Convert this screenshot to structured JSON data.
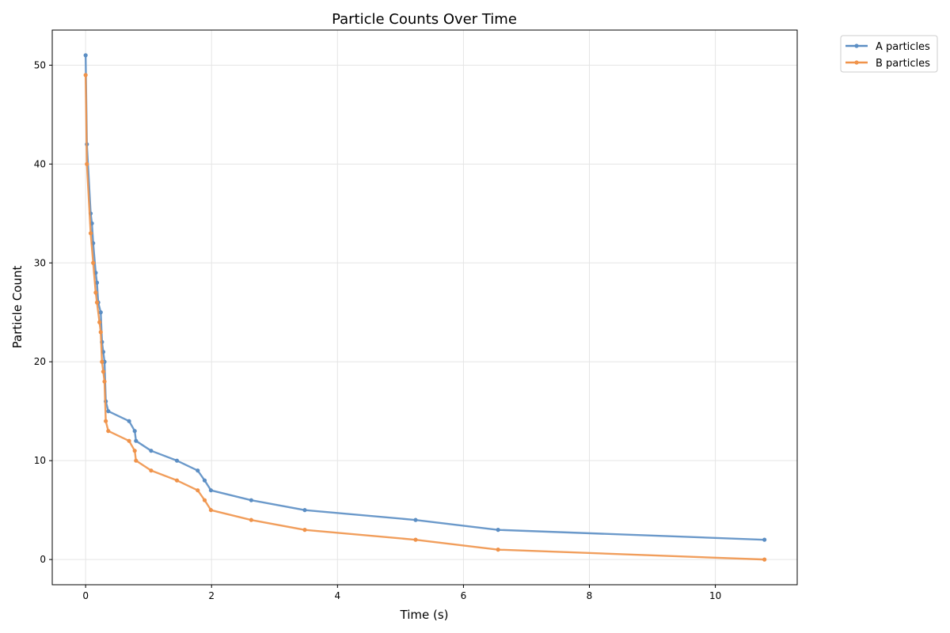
{
  "chart_data": {
    "type": "line",
    "title": "Particle Counts Over Time",
    "xlabel": "Time (s)",
    "ylabel": "Particle Count",
    "xlim": [
      -0.53,
      11.3
    ],
    "ylim": [
      -2.55,
      53.55
    ],
    "xticks": [
      0,
      2,
      4,
      6,
      8,
      10
    ],
    "yticks": [
      0,
      10,
      20,
      30,
      40,
      50
    ],
    "grid": true,
    "legend_position": "outside upper right",
    "series": [
      {
        "name": "A particles",
        "color": "#5b8ec4",
        "x": [
          0,
          0.02,
          0.08,
          0.1,
          0.12,
          0.16,
          0.18,
          0.2,
          0.24,
          0.26,
          0.28,
          0.3,
          0.32,
          0.36,
          0.69,
          0.78,
          0.8,
          1.04,
          1.45,
          1.78,
          1.89,
          1.99,
          2.63,
          3.48,
          5.24,
          6.55,
          10.78
        ],
        "y": [
          51,
          42,
          35,
          34,
          32,
          29,
          28,
          26,
          25,
          22,
          21,
          20,
          16,
          15,
          14,
          13,
          12,
          11,
          10,
          9,
          8,
          7,
          6,
          5,
          4,
          3,
          2
        ]
      },
      {
        "name": "B particles",
        "color": "#f0934a",
        "x": [
          0,
          0.02,
          0.08,
          0.12,
          0.16,
          0.18,
          0.22,
          0.24,
          0.26,
          0.28,
          0.3,
          0.32,
          0.36,
          0.69,
          0.78,
          0.8,
          1.04,
          1.45,
          1.78,
          1.89,
          1.99,
          2.63,
          3.48,
          5.24,
          6.55,
          10.78
        ],
        "y": [
          49,
          40,
          33,
          30,
          27,
          26,
          24,
          23,
          20,
          19,
          18,
          14,
          13,
          12,
          11,
          10,
          9,
          8,
          7,
          6,
          5,
          4,
          3,
          2,
          1,
          0
        ]
      }
    ]
  }
}
